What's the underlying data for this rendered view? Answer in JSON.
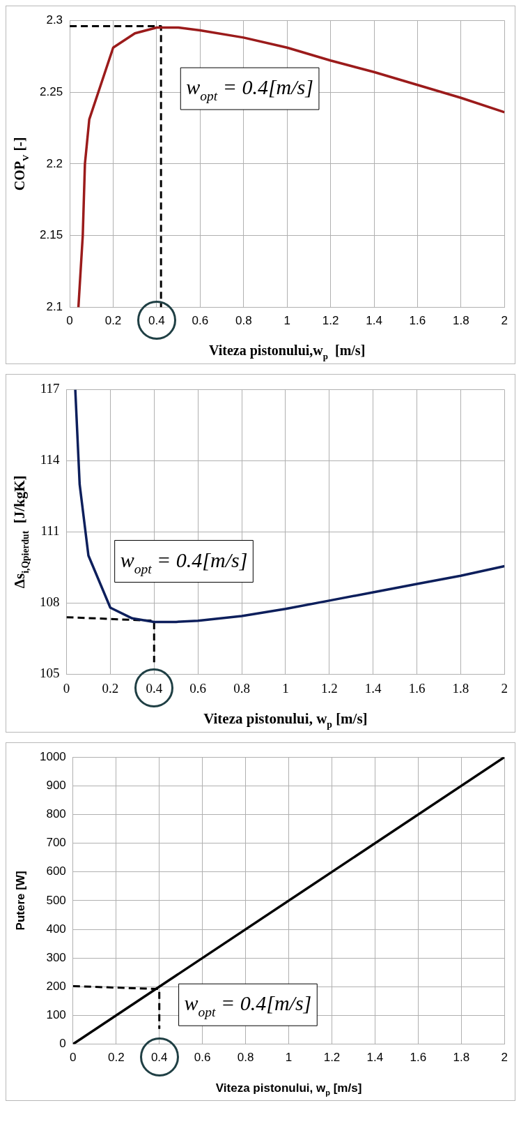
{
  "chart_data": [
    {
      "type": "line",
      "xlabel": "Viteza pistonului,w$_{p}$  [m/s]",
      "ylabel": "COP$_{V}$ [-]",
      "xlim": [
        0,
        2
      ],
      "xticks": [
        0,
        0.2,
        0.4,
        0.6,
        0.8,
        1,
        1.2,
        1.4,
        1.6,
        1.8,
        2
      ],
      "ylim": [
        2.1,
        2.3
      ],
      "yticks": [
        2.1,
        2.15,
        2.2,
        2.25,
        2.3
      ],
      "grid": true,
      "series": [
        {
          "color": "#9b1b1b",
          "x": [
            0.04,
            0.06,
            0.07,
            0.09,
            0.2,
            0.3,
            0.4,
            0.5,
            0.6,
            0.8,
            1,
            1.2,
            1.4,
            1.6,
            1.8,
            2
          ],
          "values": [
            2.1,
            2.15,
            2.2,
            2.231,
            2.281,
            2.291,
            2.295,
            2.295,
            2.293,
            2.288,
            2.281,
            2.272,
            2.264,
            2.255,
            2.246,
            2.236
          ]
        },
        {
          "color": "#000000",
          "line_style": "dashed",
          "x": [
            0,
            0.42,
            0.42
          ],
          "values": [
            2.296,
            2.296,
            2.1
          ]
        }
      ],
      "annotations": [
        "w$_{opt}$ = 0.4[m/s]"
      ]
    },
    {
      "type": "line",
      "xlabel": "Viteza pistonului, w$_{p}$ [m/s]",
      "ylabel": "Δs$_{i,Qpierdut}$  [J/kgK]",
      "xlim": [
        0,
        2
      ],
      "xticks": [
        0,
        0.2,
        0.4,
        0.6,
        0.8,
        1,
        1.2,
        1.4,
        1.6,
        1.8,
        2
      ],
      "ylim": [
        105,
        117
      ],
      "yticks": [
        105,
        108,
        111,
        114,
        117
      ],
      "grid": true,
      "series": [
        {
          "color": "#0d1f5c",
          "x": [
            0.04,
            0.06,
            0.08,
            0.1,
            0.2,
            0.3,
            0.4,
            0.5,
            0.6,
            0.8,
            1,
            1.2,
            1.4,
            1.6,
            1.8,
            2
          ],
          "values": [
            117,
            113,
            111.5,
            110,
            107.8,
            107.35,
            107.2,
            107.2,
            107.25,
            107.45,
            107.75,
            108.1,
            108.45,
            108.8,
            109.15,
            109.55
          ]
        },
        {
          "color": "#000000",
          "line_style": "dashed",
          "x": [
            0,
            0.4,
            0.4
          ],
          "values": [
            107.4,
            107.25,
            105.5
          ]
        }
      ],
      "annotations": [
        "w$_{opt}$ = 0.4[m/s]"
      ]
    },
    {
      "type": "line",
      "xlabel": "Viteza pistonului, w$_{p}$ [m/s]",
      "ylabel": "Putere [W]",
      "xlim": [
        0,
        2
      ],
      "xticks": [
        0,
        0.2,
        0.4,
        0.6,
        0.8,
        1,
        1.2,
        1.4,
        1.6,
        1.8,
        2
      ],
      "ylim": [
        0,
        1000
      ],
      "yticks": [
        0,
        100,
        200,
        300,
        400,
        500,
        600,
        700,
        800,
        900,
        1000
      ],
      "grid": true,
      "series": [
        {
          "color": "#000000",
          "x": [
            0,
            2
          ],
          "values": [
            0,
            1000
          ]
        },
        {
          "color": "#000000",
          "line_style": "dashed",
          "x": [
            0,
            0.4,
            0.4
          ],
          "values": [
            202,
            192,
            53
          ]
        }
      ],
      "annotations": [
        "w$_{opt}$ = 0.4[m/s]"
      ]
    }
  ]
}
